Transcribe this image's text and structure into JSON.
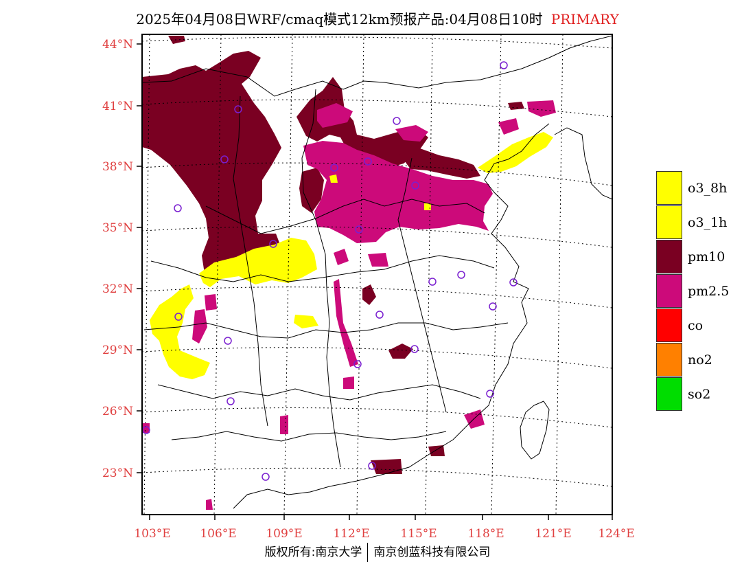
{
  "title": {
    "main": "2025年04月08日WRF/cmaq模式12km预报产品:04月08日10时",
    "tag": "PRIMARY"
  },
  "lat_labels": [
    "44°N",
    "41°N",
    "38°N",
    "35°N",
    "32°N",
    "29°N",
    "26°N",
    "23°N"
  ],
  "lon_labels": [
    "103°E",
    "106°E",
    "109°E",
    "112°E",
    "115°E",
    "118°E",
    "121°E",
    "124°E"
  ],
  "legend": [
    {
      "label": "o3_8h",
      "color": "#ffff00"
    },
    {
      "label": "o3_1h",
      "color": "#ffff00"
    },
    {
      "label": "pm10",
      "color": "#7a0022"
    },
    {
      "label": "pm2.5",
      "color": "#cc0a7a"
    },
    {
      "label": "co",
      "color": "#ff0000"
    },
    {
      "label": "no2",
      "color": "#ff8000"
    },
    {
      "label": "so2",
      "color": "#00dd00"
    }
  ],
  "footer": {
    "left": "版权所有:南京大学",
    "right": "南京创蓝科技有限公司"
  },
  "station_marker_color": "#7a1fd0"
}
